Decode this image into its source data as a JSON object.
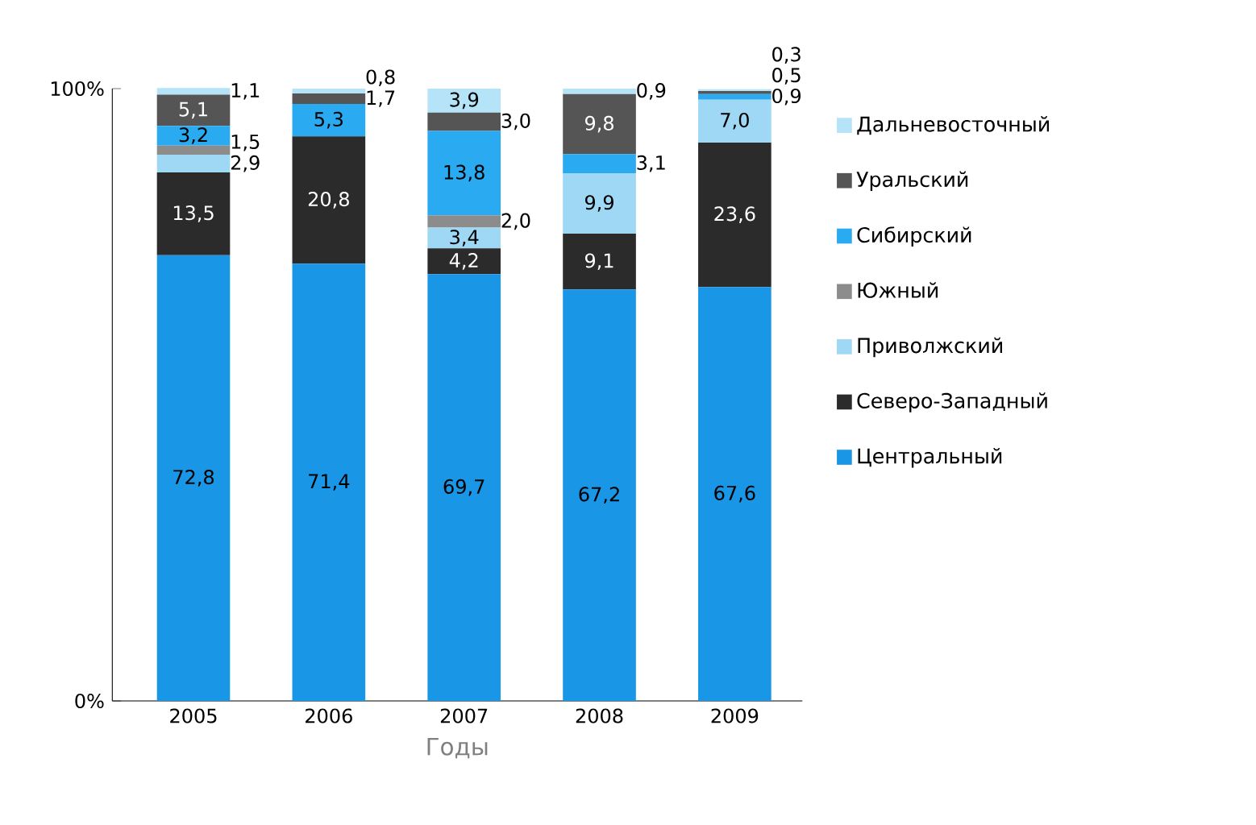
{
  "chart_data": {
    "type": "bar",
    "stacked": true,
    "xlabel": "Годы",
    "categories": [
      "2005",
      "2006",
      "2007",
      "2008",
      "2009"
    ],
    "ylim": [
      0,
      100
    ],
    "yticks": [
      {
        "value": 0,
        "label": "0%"
      },
      {
        "value": 100,
        "label": "100%"
      }
    ],
    "legend": "right",
    "series": [
      {
        "name": "Центральный",
        "color": "#1a96e6",
        "values": [
          72.8,
          71.4,
          69.7,
          67.2,
          67.6
        ],
        "value_labels": [
          "72,8",
          "71,4",
          "69,7",
          "67,2",
          "67,6"
        ]
      },
      {
        "name": "Северо-Западный",
        "color": "#2b2b2b",
        "values": [
          13.5,
          20.8,
          4.2,
          9.1,
          23.6
        ],
        "value_labels": [
          "13,5",
          "20,8",
          "4,2",
          "9,1",
          "23,6"
        ]
      },
      {
        "name": "Приволжский",
        "color": "#9fd8f4",
        "values": [
          2.9,
          null,
          3.4,
          9.9,
          7.0
        ],
        "value_labels": [
          "2,9",
          null,
          "3,4",
          "9,9",
          "7,0"
        ]
      },
      {
        "name": "Южный",
        "color": "#8c8c8c",
        "values": [
          1.5,
          null,
          2.0,
          null,
          null
        ],
        "value_labels": [
          "1,5",
          null,
          "2,0",
          null,
          null
        ]
      },
      {
        "name": "Сибирский",
        "color": "#2aaaf0",
        "values": [
          3.2,
          5.3,
          13.8,
          3.1,
          0.9
        ],
        "value_labels": [
          "3,2",
          "5,3",
          "13,8",
          "3,1",
          "0,9"
        ]
      },
      {
        "name": "Уральский",
        "color": "#555555",
        "values": [
          5.1,
          1.7,
          3.0,
          9.8,
          0.5
        ],
        "value_labels": [
          "5,1",
          "1,7",
          "3,0",
          "9,8",
          "0,5"
        ]
      },
      {
        "name": "Дальневосточный",
        "color": "#b5e3f8",
        "values": [
          1.1,
          0.8,
          3.9,
          0.9,
          0.3
        ],
        "value_labels": [
          "1,1",
          "0,8",
          "3,9",
          "0,9",
          "0,3"
        ]
      }
    ]
  }
}
